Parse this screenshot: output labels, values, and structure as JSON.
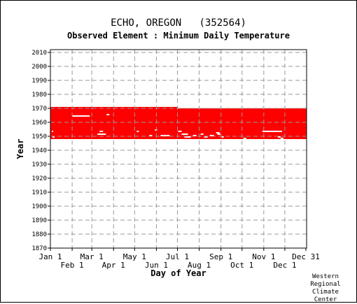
{
  "header": {
    "title": "ECHO, OREGON   (352564)",
    "subtitle": "Observed Element : Minimum Daily Temperature"
  },
  "credit": [
    "Western",
    "Regional",
    "Climate",
    "Center"
  ],
  "colors": {
    "data": "#ff0000",
    "gap": "#ffffff",
    "grid": "#999999",
    "axis": "#000000"
  },
  "chart_data": {
    "type": "heatmap",
    "xlabel": "Day of Year",
    "ylabel": "Year",
    "x_range_days": [
      1,
      365
    ],
    "ylim": [
      1870,
      2012
    ],
    "y_ticks": [
      1870,
      1880,
      1890,
      1900,
      1910,
      1920,
      1930,
      1940,
      1950,
      1960,
      1970,
      1980,
      1990,
      2000,
      2010
    ],
    "x_ticks_upper": [
      {
        "label": "Jan 1",
        "day": 1
      },
      {
        "label": "Mar 1",
        "day": 60
      },
      {
        "label": "May 1",
        "day": 121
      },
      {
        "label": "Jul 1",
        "day": 182
      },
      {
        "label": "Sep 1",
        "day": 244
      },
      {
        "label": "Nov 1",
        "day": 305
      },
      {
        "label": "Dec 31",
        "day": 365
      }
    ],
    "x_ticks_lower": [
      {
        "label": "Feb 1",
        "day": 32
      },
      {
        "label": "Apr 1",
        "day": 91
      },
      {
        "label": "Jun 1",
        "day": 152
      },
      {
        "label": "Aug 1",
        "day": 213
      },
      {
        "label": "Oct 1",
        "day": 274
      },
      {
        "label": "Dec 1",
        "day": 335
      }
    ],
    "grid": true,
    "coverage": [
      {
        "year_start": 1948,
        "year_end": 1970,
        "day_start": 1,
        "day_end": 181
      },
      {
        "year_start": 1948,
        "year_end": 1969,
        "day_start": 182,
        "day_end": 365
      }
    ],
    "gaps": [
      {
        "year": 1964,
        "day_start": 32,
        "day_end": 56
      },
      {
        "year": 1965,
        "day_start": 81,
        "day_end": 84
      },
      {
        "year": 1953,
        "day_start": 71,
        "day_end": 75
      },
      {
        "year": 1951,
        "day_start": 68,
        "day_end": 79
      },
      {
        "year": 1949,
        "day_start": 4,
        "day_end": 6
      },
      {
        "year": 1953,
        "day_start": 3,
        "day_end": 4
      },
      {
        "year": 1953,
        "day_start": 124,
        "day_end": 126
      },
      {
        "year": 1950,
        "day_start": 142,
        "day_end": 145
      },
      {
        "year": 1954,
        "day_start": 150,
        "day_end": 152
      },
      {
        "year": 1950,
        "day_start": 158,
        "day_end": 170
      },
      {
        "year": 1953,
        "day_start": 183,
        "day_end": 187
      },
      {
        "year": 1951,
        "day_start": 188,
        "day_end": 196
      },
      {
        "year": 1949,
        "day_start": 192,
        "day_end": 200
      },
      {
        "year": 1950,
        "day_start": 204,
        "day_end": 208
      },
      {
        "year": 1951,
        "day_start": 215,
        "day_end": 218
      },
      {
        "year": 1949,
        "day_start": 220,
        "day_end": 224
      },
      {
        "year": 1950,
        "day_start": 228,
        "day_end": 233
      },
      {
        "year": 1952,
        "day_start": 237,
        "day_end": 241
      },
      {
        "year": 1949,
        "day_start": 245,
        "day_end": 247
      },
      {
        "year": 1951,
        "day_start": 239,
        "day_end": 242
      },
      {
        "year": 1948,
        "day_start": 276,
        "day_end": 279
      },
      {
        "year": 1953,
        "day_start": 303,
        "day_end": 330
      },
      {
        "year": 1949,
        "day_start": 325,
        "day_end": 328
      },
      {
        "year": 1948,
        "day_start": 329,
        "day_end": 332
      }
    ]
  }
}
